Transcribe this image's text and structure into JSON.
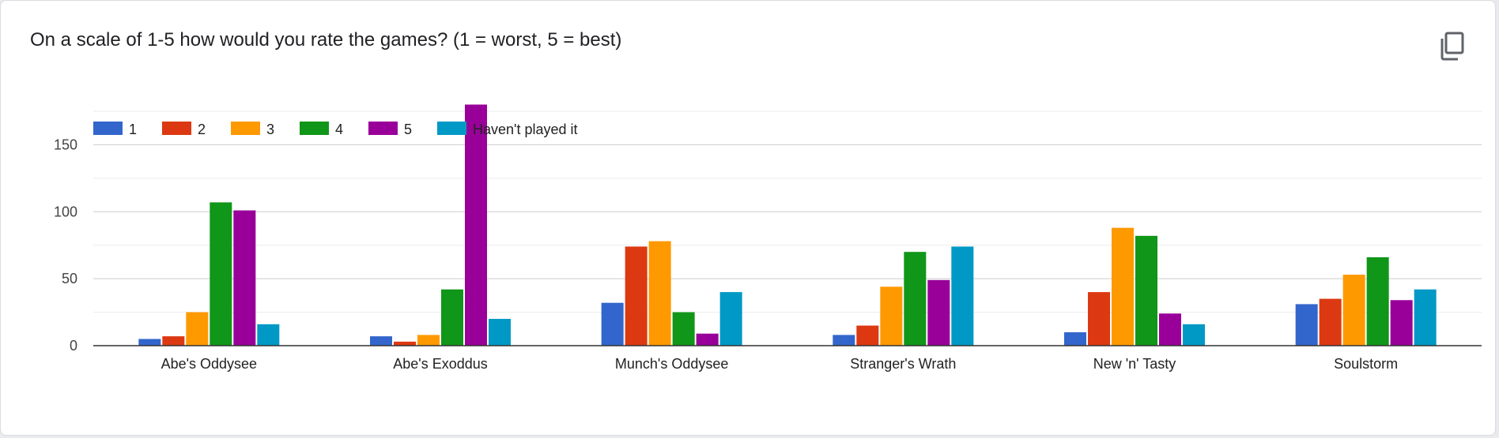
{
  "question": {
    "title": "On a scale of 1-5 how would you rate the games? (1 = worst, 5 = best)",
    "copy_icon": "copy-icon"
  },
  "chart_data": {
    "type": "bar",
    "title": "On a scale of 1-5 how would you rate the games? (1 = worst, 5 = best)",
    "categories": [
      "Abe's Oddysee",
      "Abe's Exoddus",
      "Munch's Oddysee",
      "Stranger's Wrath",
      "New 'n' Tasty",
      "Soulstorm"
    ],
    "series": [
      {
        "name": "1",
        "color": "#3366cc",
        "values": [
          5,
          7,
          32,
          8,
          10,
          31
        ]
      },
      {
        "name": "2",
        "color": "#dc3912",
        "values": [
          7,
          3,
          74,
          15,
          40,
          35
        ]
      },
      {
        "name": "3",
        "color": "#ff9900",
        "values": [
          25,
          8,
          78,
          44,
          88,
          53
        ]
      },
      {
        "name": "4",
        "color": "#109618",
        "values": [
          107,
          42,
          25,
          70,
          82,
          66
        ]
      },
      {
        "name": "5",
        "color": "#990099",
        "values": [
          101,
          180,
          9,
          49,
          24,
          34
        ]
      },
      {
        "name": "Haven't played it",
        "color": "#0099c6",
        "values": [
          16,
          20,
          40,
          74,
          16,
          42
        ]
      }
    ],
    "yticks": [
      0,
      50,
      100,
      150
    ],
    "ylim": [
      0,
      175
    ],
    "grid": true,
    "legend_position": "top-left"
  }
}
